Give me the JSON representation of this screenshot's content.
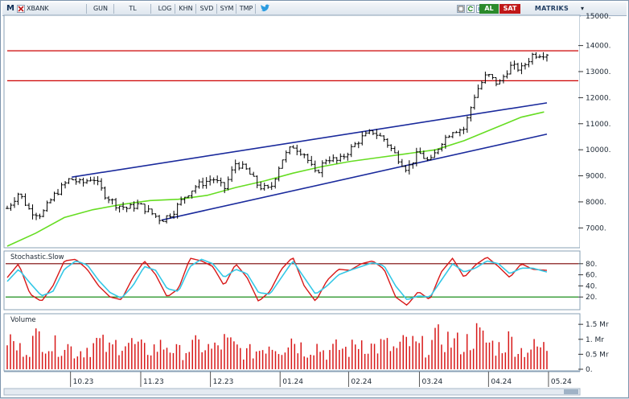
{
  "toolbar": {
    "symbol": "XBANK",
    "period": "GUN",
    "currency": "TL",
    "log": "LOG",
    "khn": "KHN",
    "svd": "SVD",
    "sym": "SYM",
    "tmp": "TMP",
    "buy": "AL",
    "sell": "SAT",
    "brand": "MATRIKS",
    "m_label": "M"
  },
  "colors": {
    "candle": "#000000",
    "resistance": "#cc0000",
    "channel": "#1a2a9c",
    "moving_average": "#66dd22",
    "stoch_k": "#d81818",
    "stoch_d": "#35c8e6",
    "volume": "#d81818",
    "band": "#7a0000",
    "band_low": "#008000"
  },
  "chart_data": [
    {
      "type": "candlestick",
      "x_labels": [
        "10.23",
        "11.23",
        "12.23",
        "01.24",
        "02.24",
        "03.24",
        "04.24",
        "05.24"
      ],
      "y_ticks": [
        "14000.",
        "13000.",
        "12000.",
        "11000.",
        "10000.",
        "9000.",
        "8000.",
        "7000."
      ],
      "y_ticks_values": [
        14000,
        13000,
        12000,
        11000,
        10000,
        9000,
        8000,
        7000
      ],
      "top_partial_label": "15000.",
      "ylim": [
        6300,
        15100
      ],
      "resistance_levels": [
        13800,
        12650
      ],
      "channel_upper": [
        {
          "x": 0.113,
          "y": 8950
        },
        {
          "x": 0.945,
          "y": 11800
        }
      ],
      "channel_lower": [
        {
          "x": 0.27,
          "y": 7300
        },
        {
          "x": 0.945,
          "y": 10600
        }
      ],
      "ohlc_anchor_closes": [
        [
          0.0,
          7750
        ],
        [
          0.02,
          8350
        ],
        [
          0.04,
          7650
        ],
        [
          0.06,
          7500
        ],
        [
          0.08,
          8200
        ],
        [
          0.11,
          8900
        ],
        [
          0.13,
          8700
        ],
        [
          0.15,
          8950
        ],
        [
          0.17,
          8300
        ],
        [
          0.19,
          7900
        ],
        [
          0.21,
          7750
        ],
        [
          0.23,
          7900
        ],
        [
          0.25,
          7600
        ],
        [
          0.27,
          7300
        ],
        [
          0.29,
          7600
        ],
        [
          0.31,
          8200
        ],
        [
          0.33,
          8600
        ],
        [
          0.36,
          8900
        ],
        [
          0.38,
          8500
        ],
        [
          0.4,
          9500
        ],
        [
          0.42,
          9200
        ],
        [
          0.44,
          8600
        ],
        [
          0.46,
          8450
        ],
        [
          0.48,
          9600
        ],
        [
          0.5,
          10150
        ],
        [
          0.52,
          9850
        ],
        [
          0.54,
          9050
        ],
        [
          0.56,
          9700
        ],
        [
          0.58,
          9550
        ],
        [
          0.6,
          10000
        ],
        [
          0.62,
          10450
        ],
        [
          0.64,
          10700
        ],
        [
          0.66,
          10400
        ],
        [
          0.68,
          9800
        ],
        [
          0.7,
          9250
        ],
        [
          0.72,
          9900
        ],
        [
          0.74,
          9500
        ],
        [
          0.76,
          10300
        ],
        [
          0.78,
          10750
        ],
        [
          0.8,
          10800
        ],
        [
          0.82,
          12200
        ],
        [
          0.84,
          12900
        ],
        [
          0.86,
          12500
        ],
        [
          0.88,
          13200
        ],
        [
          0.9,
          13100
        ],
        [
          0.92,
          13650
        ],
        [
          0.945,
          13700
        ]
      ],
      "moving_average": [
        [
          0.0,
          6300
        ],
        [
          0.05,
          6800
        ],
        [
          0.1,
          7400
        ],
        [
          0.15,
          7700
        ],
        [
          0.2,
          7900
        ],
        [
          0.25,
          8050
        ],
        [
          0.3,
          8100
        ],
        [
          0.35,
          8250
        ],
        [
          0.4,
          8550
        ],
        [
          0.45,
          8800
        ],
        [
          0.5,
          9100
        ],
        [
          0.55,
          9350
        ],
        [
          0.6,
          9550
        ],
        [
          0.65,
          9700
        ],
        [
          0.7,
          9850
        ],
        [
          0.75,
          10000
        ],
        [
          0.8,
          10350
        ],
        [
          0.85,
          10800
        ],
        [
          0.9,
          11250
        ],
        [
          0.94,
          11450
        ]
      ]
    },
    {
      "type": "line",
      "title": "Stochastic.Slow",
      "y_ticks": [
        "80.",
        "60.",
        "40.",
        "20."
      ],
      "y_ticks_values": [
        80,
        60,
        40,
        20
      ],
      "ylim": [
        0,
        100
      ],
      "bands": [
        80,
        20
      ],
      "series": [
        {
          "key": "k",
          "values": [
            [
              0.0,
              55
            ],
            [
              0.02,
              80
            ],
            [
              0.04,
              25
            ],
            [
              0.06,
              12
            ],
            [
              0.08,
              40
            ],
            [
              0.1,
              85
            ],
            [
              0.12,
              88
            ],
            [
              0.14,
              70
            ],
            [
              0.16,
              40
            ],
            [
              0.18,
              20
            ],
            [
              0.2,
              15
            ],
            [
              0.22,
              55
            ],
            [
              0.24,
              85
            ],
            [
              0.26,
              60
            ],
            [
              0.28,
              20
            ],
            [
              0.3,
              35
            ],
            [
              0.32,
              90
            ],
            [
              0.34,
              85
            ],
            [
              0.36,
              75
            ],
            [
              0.38,
              40
            ],
            [
              0.4,
              80
            ],
            [
              0.42,
              55
            ],
            [
              0.44,
              12
            ],
            [
              0.46,
              30
            ],
            [
              0.48,
              70
            ],
            [
              0.5,
              92
            ],
            [
              0.52,
              40
            ],
            [
              0.54,
              12
            ],
            [
              0.56,
              50
            ],
            [
              0.58,
              70
            ],
            [
              0.6,
              68
            ],
            [
              0.62,
              80
            ],
            [
              0.64,
              85
            ],
            [
              0.66,
              70
            ],
            [
              0.68,
              20
            ],
            [
              0.7,
              5
            ],
            [
              0.72,
              30
            ],
            [
              0.74,
              15
            ],
            [
              0.76,
              65
            ],
            [
              0.78,
              90
            ],
            [
              0.8,
              55
            ],
            [
              0.82,
              78
            ],
            [
              0.84,
              92
            ],
            [
              0.86,
              75
            ],
            [
              0.88,
              55
            ],
            [
              0.9,
              80
            ],
            [
              0.92,
              70
            ],
            [
              0.945,
              68
            ]
          ]
        },
        {
          "key": "d",
          "values": [
            [
              0.0,
              48
            ],
            [
              0.02,
              70
            ],
            [
              0.04,
              45
            ],
            [
              0.06,
              22
            ],
            [
              0.08,
              30
            ],
            [
              0.1,
              70
            ],
            [
              0.12,
              85
            ],
            [
              0.14,
              78
            ],
            [
              0.16,
              50
            ],
            [
              0.18,
              28
            ],
            [
              0.2,
              18
            ],
            [
              0.22,
              40
            ],
            [
              0.24,
              75
            ],
            [
              0.26,
              68
            ],
            [
              0.28,
              35
            ],
            [
              0.3,
              30
            ],
            [
              0.32,
              75
            ],
            [
              0.34,
              88
            ],
            [
              0.36,
              80
            ],
            [
              0.38,
              55
            ],
            [
              0.4,
              70
            ],
            [
              0.42,
              62
            ],
            [
              0.44,
              28
            ],
            [
              0.46,
              25
            ],
            [
              0.48,
              55
            ],
            [
              0.5,
              85
            ],
            [
              0.52,
              55
            ],
            [
              0.54,
              25
            ],
            [
              0.56,
              40
            ],
            [
              0.58,
              60
            ],
            [
              0.6,
              68
            ],
            [
              0.62,
              75
            ],
            [
              0.64,
              82
            ],
            [
              0.66,
              76
            ],
            [
              0.68,
              40
            ],
            [
              0.7,
              15
            ],
            [
              0.72,
              22
            ],
            [
              0.74,
              20
            ],
            [
              0.76,
              50
            ],
            [
              0.78,
              80
            ],
            [
              0.8,
              65
            ],
            [
              0.82,
              72
            ],
            [
              0.84,
              85
            ],
            [
              0.86,
              80
            ],
            [
              0.88,
              62
            ],
            [
              0.9,
              72
            ],
            [
              0.92,
              72
            ],
            [
              0.945,
              65
            ]
          ]
        }
      ]
    },
    {
      "type": "bar",
      "title": "Volume",
      "y_ticks": [
        "1.5 Mr",
        "1. Mr",
        "0.5 Mr",
        "0."
      ],
      "y_ticks_values": [
        1.5,
        1.0,
        0.5,
        0
      ],
      "ylim": [
        0,
        1.8
      ],
      "unit": "Mr",
      "values_anchor": [
        [
          0.0,
          1.2
        ],
        [
          0.02,
          0.7
        ],
        [
          0.04,
          0.9
        ],
        [
          0.06,
          1.3
        ],
        [
          0.08,
          0.8
        ],
        [
          0.1,
          1.0
        ],
        [
          0.12,
          0.6
        ],
        [
          0.14,
          0.8
        ],
        [
          0.16,
          1.0
        ],
        [
          0.18,
          0.7
        ],
        [
          0.2,
          1.1
        ],
        [
          0.22,
          0.9
        ],
        [
          0.24,
          0.7
        ],
        [
          0.26,
          0.8
        ],
        [
          0.28,
          0.9
        ],
        [
          0.3,
          0.6
        ],
        [
          0.32,
          0.8
        ],
        [
          0.34,
          0.9
        ],
        [
          0.36,
          0.7
        ],
        [
          0.38,
          1.0
        ],
        [
          0.4,
          0.8
        ],
        [
          0.42,
          0.6
        ],
        [
          0.44,
          0.7
        ],
        [
          0.46,
          1.0
        ],
        [
          0.48,
          0.8
        ],
        [
          0.5,
          1.2
        ],
        [
          0.52,
          0.7
        ],
        [
          0.54,
          0.9
        ],
        [
          0.56,
          0.6
        ],
        [
          0.58,
          0.8
        ],
        [
          0.6,
          0.7
        ],
        [
          0.62,
          1.1
        ],
        [
          0.64,
          0.8
        ],
        [
          0.66,
          0.9
        ],
        [
          0.68,
          0.7
        ],
        [
          0.7,
          1.0
        ],
        [
          0.72,
          0.8
        ],
        [
          0.74,
          0.9
        ],
        [
          0.76,
          1.2
        ],
        [
          0.78,
          1.0
        ],
        [
          0.8,
          0.9
        ],
        [
          0.82,
          1.3
        ],
        [
          0.84,
          1.0
        ],
        [
          0.86,
          0.8
        ],
        [
          0.88,
          1.1
        ],
        [
          0.9,
          0.7
        ],
        [
          0.92,
          0.8
        ],
        [
          0.945,
          0.8
        ]
      ]
    }
  ]
}
